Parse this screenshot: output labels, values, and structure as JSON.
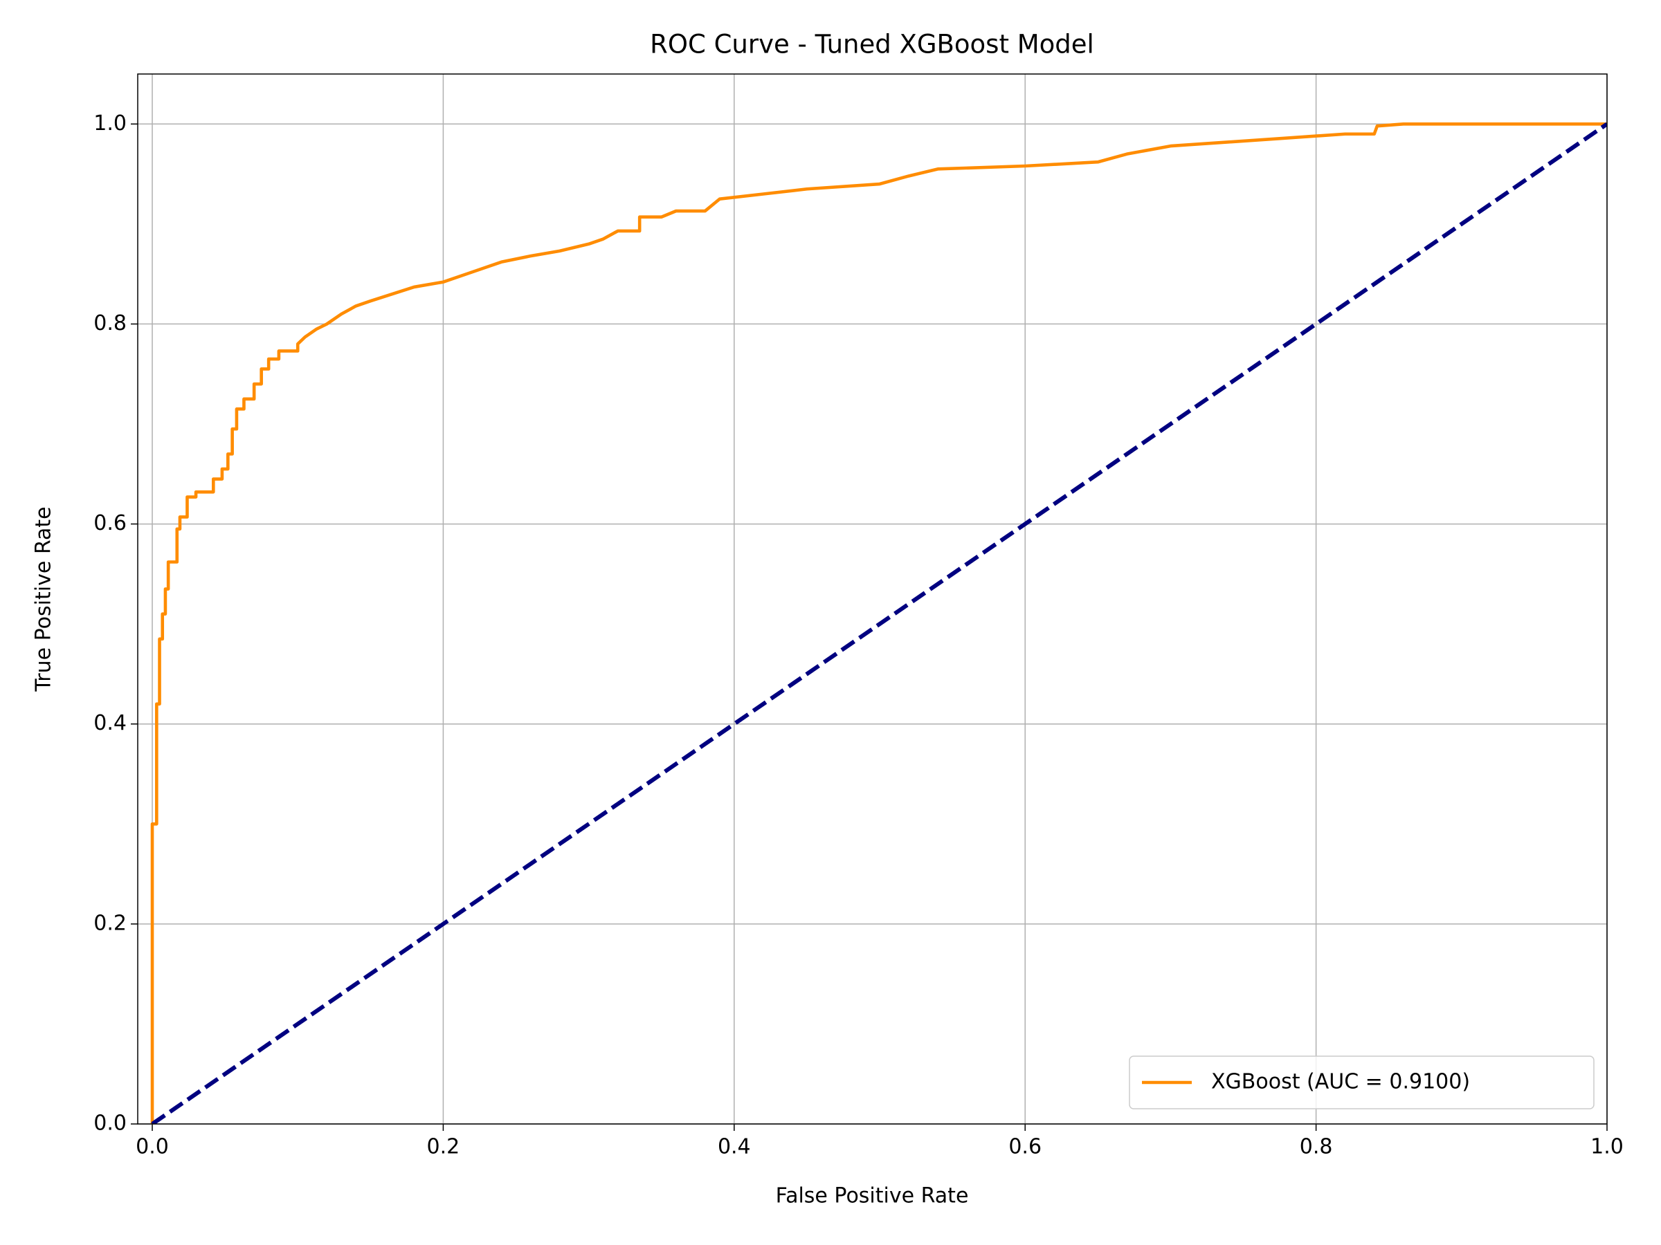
{
  "chart_data": {
    "type": "line",
    "title": "ROC Curve - Tuned XGBoost Model",
    "x_label": "False Positive Rate",
    "y_label": "True Positive Rate",
    "xlim": [
      -0.01,
      1.0
    ],
    "ylim": [
      0,
      1.05
    ],
    "xticks": [
      {
        "value": 0,
        "label": "0.0"
      },
      0.2,
      0.4,
      0.6,
      0.8,
      {
        "value": 1,
        "label": "1.0"
      }
    ],
    "yticks": [
      {
        "value": 0,
        "label": "0.0"
      },
      0.2,
      0.4,
      0.6,
      0.8,
      {
        "value": 1,
        "label": "1.0"
      }
    ],
    "grid": true,
    "legend": "lower right",
    "series": [
      {
        "name": "XGBoost (AUC = 0.9100)",
        "color": "#ff8c00",
        "dash": "solid",
        "x": [
          0,
          0,
          0.003,
          0.003,
          0.005,
          0.005,
          0.007,
          0.007,
          0.009,
          0.009,
          0.011,
          0.011,
          0.017,
          0.017,
          0.019,
          0.019,
          0.024,
          0.024,
          0.03,
          0.03,
          0.042,
          0.042,
          0.048,
          0.048,
          0.052,
          0.052,
          0.055,
          0.055,
          0.058,
          0.058,
          0.063,
          0.063,
          0.07,
          0.07,
          0.075,
          0.075,
          0.08,
          0.08,
          0.087,
          0.087,
          0.1,
          0.1,
          0.105,
          0.113,
          0.12,
          0.13,
          0.14,
          0.15,
          0.165,
          0.18,
          0.2,
          0.22,
          0.24,
          0.26,
          0.28,
          0.3,
          0.31,
          0.32,
          0.335,
          0.335,
          0.35,
          0.36,
          0.38,
          0.39,
          0.42,
          0.45,
          0.5,
          0.52,
          0.54,
          0.6,
          0.65,
          0.67,
          0.7,
          0.74,
          0.78,
          0.82,
          0.84,
          0.842,
          0.86,
          1.0
        ],
        "values": [
          0,
          0.3,
          0.3,
          0.42,
          0.42,
          0.485,
          0.485,
          0.51,
          0.51,
          0.535,
          0.535,
          0.562,
          0.562,
          0.595,
          0.595,
          0.607,
          0.607,
          0.627,
          0.627,
          0.632,
          0.632,
          0.645,
          0.645,
          0.655,
          0.655,
          0.67,
          0.67,
          0.695,
          0.695,
          0.715,
          0.715,
          0.725,
          0.725,
          0.74,
          0.74,
          0.755,
          0.755,
          0.765,
          0.765,
          0.773,
          0.773,
          0.78,
          0.787,
          0.795,
          0.8,
          0.81,
          0.818,
          0.823,
          0.83,
          0.837,
          0.842,
          0.852,
          0.862,
          0.868,
          0.873,
          0.88,
          0.885,
          0.893,
          0.893,
          0.907,
          0.907,
          0.913,
          0.913,
          0.925,
          0.93,
          0.935,
          0.94,
          0.948,
          0.955,
          0.958,
          0.962,
          0.97,
          0.978,
          0.982,
          0.986,
          0.99,
          0.99,
          0.998,
          1.0,
          1.0
        ]
      },
      {
        "color": "#000080",
        "dash": "dashed",
        "x": [
          0,
          1
        ],
        "values": [
          0,
          1
        ]
      }
    ]
  }
}
